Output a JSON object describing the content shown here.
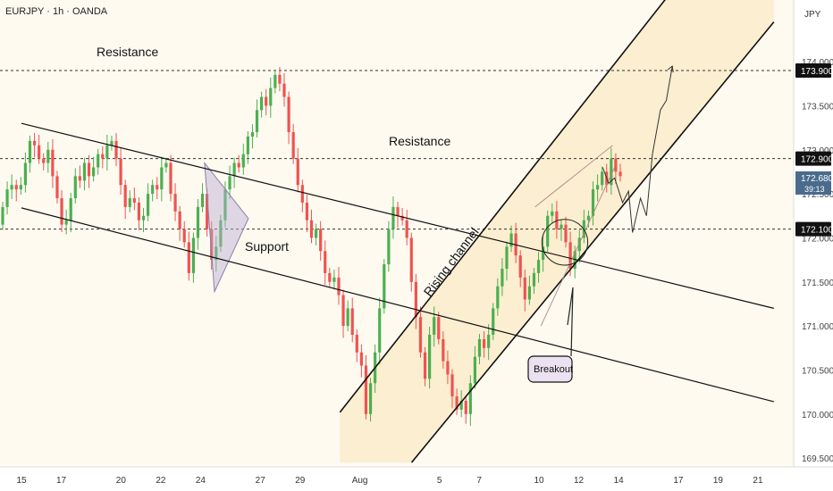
{
  "header": {
    "symbol_line": "EURJPY · 1h · OANDA",
    "currency": "JPY"
  },
  "chart_data": {
    "type": "candlestick",
    "symbol": "EURJPY",
    "timeframe": "1h",
    "broker": "OANDA",
    "ylim": [
      169.4,
      174.7
    ],
    "y_ticks": [
      "174.000",
      "173.500",
      "173.000",
      "172.500",
      "172.000",
      "171.500",
      "171.000",
      "170.500",
      "170.000",
      "169.500"
    ],
    "x_ticks": [
      {
        "label": "15",
        "x": 0
      },
      {
        "label": "17",
        "x": 2
      },
      {
        "label": "20",
        "x": 5
      },
      {
        "label": "22",
        "x": 7
      },
      {
        "label": "24",
        "x": 9
      },
      {
        "label": "27",
        "x": 12
      },
      {
        "label": "29",
        "x": 14
      },
      {
        "label": "Aug",
        "x": 17
      },
      {
        "label": "5",
        "x": 21
      },
      {
        "label": "7",
        "x": 23
      },
      {
        "label": "10",
        "x": 26
      },
      {
        "label": "12",
        "x": 28
      },
      {
        "label": "14",
        "x": 30
      },
      {
        "label": "17",
        "x": 33
      },
      {
        "label": "19",
        "x": 35
      },
      {
        "label": "21",
        "x": 37
      }
    ],
    "xlim": [
      0,
      38.6
    ],
    "last_price": "172.680",
    "countdown": "39:13",
    "horizontal_levels": [
      {
        "value": 173.9,
        "label": "173.900"
      },
      {
        "value": 172.9,
        "label": "172.900"
      },
      {
        "value": 172.1,
        "label": "172.100"
      }
    ],
    "trend_lines": [
      {
        "p1": [
          0,
          173.3
        ],
        "p2": [
          37.8,
          171.2
        ]
      },
      {
        "p1": [
          0,
          172.34
        ],
        "p2": [
          37.8,
          170.14
        ]
      }
    ],
    "channel_lines": [
      {
        "p1": [
          16.0,
          170.02
        ],
        "p2": [
          32.5,
          174.75
        ]
      },
      {
        "p1": [
          19.6,
          169.45
        ],
        "p2": [
          37.8,
          174.45
        ]
      }
    ],
    "channel_fill": [
      [
        16.0,
        170.02
      ],
      [
        32.5,
        174.75
      ],
      [
        37.8,
        174.75
      ],
      [
        37.8,
        174.45
      ],
      [
        19.6,
        169.45
      ],
      [
        16.0,
        169.45
      ]
    ],
    "triangle": [
      [
        9.2,
        172.85
      ],
      [
        11.4,
        172.22
      ],
      [
        9.7,
        171.39
      ]
    ],
    "wedge_lines": [
      {
        "p1": [
          25.8,
          172.35
        ],
        "p2": [
          29.7,
          173.05
        ]
      },
      {
        "p1": [
          26.1,
          171.0
        ],
        "p2": [
          29.8,
          172.8
        ]
      }
    ],
    "circle": {
      "x": 27.3,
      "y": 171.95,
      "r": 1.15
    },
    "projection": [
      [
        29.2,
        172.8
      ],
      [
        29.5,
        172.62
      ],
      [
        29.8,
        172.68
      ],
      [
        30.2,
        172.4
      ],
      [
        30.5,
        172.53
      ],
      [
        30.7,
        172.06
      ],
      [
        31.1,
        172.45
      ],
      [
        31.4,
        172.25
      ],
      [
        31.7,
        172.95
      ],
      [
        32.1,
        173.45
      ],
      [
        32.4,
        173.56
      ],
      [
        32.7,
        173.95
      ]
    ],
    "candles": [
      [
        172.15,
        172.35
      ],
      [
        172.35,
        172.55
      ],
      [
        172.55,
        172.6
      ],
      [
        172.6,
        172.55
      ],
      [
        172.55,
        172.6
      ],
      [
        172.6,
        172.85
      ],
      [
        172.85,
        173.1
      ],
      [
        173.1,
        173.05
      ],
      [
        173.05,
        172.9
      ],
      [
        172.9,
        172.85
      ],
      [
        172.85,
        173.0
      ],
      [
        173.0,
        172.7
      ],
      [
        172.7,
        172.45
      ],
      [
        172.45,
        172.15
      ],
      [
        172.15,
        172.2
      ],
      [
        172.2,
        172.45
      ],
      [
        172.45,
        172.7
      ],
      [
        172.7,
        172.65
      ],
      [
        172.65,
        172.85
      ],
      [
        172.85,
        172.7
      ],
      [
        172.7,
        172.8
      ],
      [
        172.8,
        172.95
      ],
      [
        172.95,
        172.9
      ],
      [
        172.9,
        173.05
      ],
      [
        173.05,
        173.1
      ],
      [
        173.1,
        172.9
      ],
      [
        172.9,
        172.6
      ],
      [
        172.6,
        172.35
      ],
      [
        172.35,
        172.45
      ],
      [
        172.45,
        172.4
      ],
      [
        172.4,
        172.2
      ],
      [
        172.2,
        172.25
      ],
      [
        172.25,
        172.5
      ],
      [
        172.5,
        172.6
      ],
      [
        172.6,
        172.55
      ],
      [
        172.55,
        172.8
      ],
      [
        172.8,
        172.85
      ],
      [
        172.85,
        172.5
      ],
      [
        172.5,
        172.3
      ],
      [
        172.3,
        172.1
      ],
      [
        172.1,
        171.95
      ],
      [
        171.95,
        171.6
      ],
      [
        171.6,
        172.0
      ],
      [
        172.0,
        172.35
      ],
      [
        172.35,
        172.5
      ],
      [
        172.5,
        172.1
      ],
      [
        172.1,
        171.75
      ],
      [
        171.75,
        171.9
      ],
      [
        171.9,
        172.2
      ],
      [
        172.2,
        172.55
      ],
      [
        172.55,
        172.7
      ],
      [
        172.7,
        172.85
      ],
      [
        172.85,
        172.8
      ],
      [
        172.8,
        172.95
      ],
      [
        172.95,
        173.15
      ],
      [
        173.15,
        173.2
      ],
      [
        173.2,
        173.45
      ],
      [
        173.45,
        173.6
      ],
      [
        173.6,
        173.5
      ],
      [
        173.5,
        173.7
      ],
      [
        173.7,
        173.85
      ],
      [
        173.85,
        173.75
      ],
      [
        173.75,
        173.6
      ],
      [
        173.6,
        173.2
      ],
      [
        173.2,
        172.9
      ],
      [
        172.9,
        172.6
      ],
      [
        172.6,
        172.4
      ],
      [
        172.4,
        172.2
      ],
      [
        172.2,
        172.0
      ],
      [
        172.0,
        172.1
      ],
      [
        172.1,
        171.85
      ],
      [
        171.85,
        171.6
      ],
      [
        171.6,
        171.5
      ],
      [
        171.5,
        171.55
      ],
      [
        171.55,
        171.35
      ],
      [
        171.35,
        171.0
      ],
      [
        171.0,
        171.2
      ],
      [
        171.2,
        170.9
      ],
      [
        170.9,
        170.7
      ],
      [
        170.7,
        170.55
      ],
      [
        170.55,
        170.0
      ],
      [
        170.0,
        170.35
      ],
      [
        170.35,
        170.7
      ],
      [
        170.7,
        171.2
      ],
      [
        171.2,
        171.7
      ],
      [
        171.7,
        172.1
      ],
      [
        172.1,
        172.35
      ],
      [
        172.35,
        172.25
      ],
      [
        172.25,
        172.2
      ],
      [
        172.2,
        172.0
      ],
      [
        172.0,
        171.5
      ],
      [
        171.5,
        171.1
      ],
      [
        171.1,
        170.7
      ],
      [
        170.7,
        170.4
      ],
      [
        170.4,
        170.9
      ],
      [
        170.9,
        171.1
      ],
      [
        171.1,
        170.85
      ],
      [
        170.85,
        170.6
      ],
      [
        170.6,
        170.45
      ],
      [
        170.45,
        170.2
      ],
      [
        170.2,
        170.05
      ],
      [
        170.05,
        170.15
      ],
      [
        170.15,
        170.0
      ],
      [
        170.0,
        170.35
      ],
      [
        170.35,
        170.65
      ],
      [
        170.65,
        170.85
      ],
      [
        170.85,
        170.75
      ],
      [
        170.75,
        170.9
      ],
      [
        170.9,
        171.2
      ],
      [
        171.2,
        171.45
      ],
      [
        171.45,
        171.65
      ],
      [
        171.65,
        171.9
      ],
      [
        171.9,
        172.05
      ],
      [
        172.05,
        171.8
      ],
      [
        171.8,
        171.55
      ],
      [
        171.55,
        171.3
      ],
      [
        171.3,
        171.45
      ],
      [
        171.45,
        171.6
      ],
      [
        171.6,
        171.75
      ],
      [
        171.75,
        171.9
      ],
      [
        171.9,
        172.25
      ],
      [
        172.25,
        172.3
      ],
      [
        172.3,
        172.1
      ],
      [
        172.1,
        172.15
      ],
      [
        172.15,
        171.95
      ],
      [
        171.95,
        171.65
      ],
      [
        171.65,
        171.85
      ],
      [
        171.85,
        172.0
      ],
      [
        172.0,
        172.2
      ],
      [
        172.2,
        172.25
      ],
      [
        172.25,
        172.55
      ],
      [
        172.55,
        172.6
      ],
      [
        172.6,
        172.75
      ],
      [
        172.75,
        172.6
      ],
      [
        172.6,
        172.9
      ],
      [
        172.9,
        172.75
      ],
      [
        172.75,
        172.7
      ]
    ]
  }
}
